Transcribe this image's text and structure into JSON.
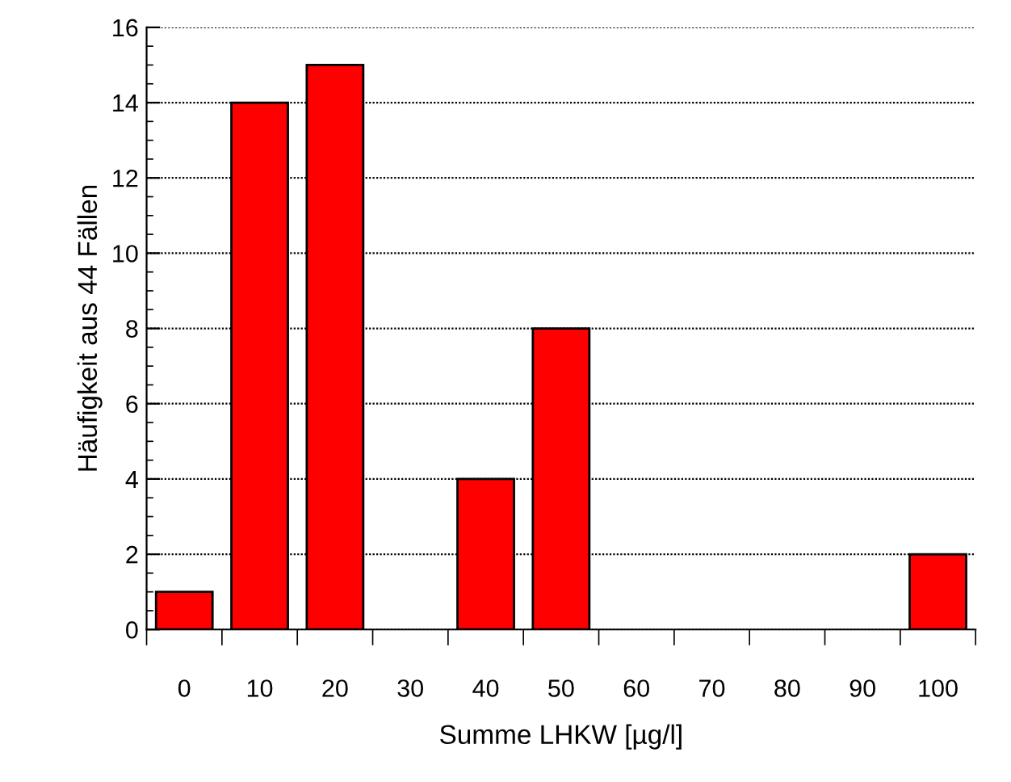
{
  "chart_data": {
    "type": "bar",
    "xlabel": "Summe LHKW [µg/l]",
    "ylabel": "Häufigkeit aus 44 Fällen",
    "categories": [
      "0",
      "10",
      "20",
      "30",
      "40",
      "50",
      "60",
      "70",
      "80",
      "90",
      "100"
    ],
    "values": [
      1,
      14,
      15,
      0,
      4,
      8,
      0,
      0,
      0,
      0,
      2
    ],
    "color": "#ff0000",
    "ylim": [
      0,
      16
    ],
    "yticks": [
      0,
      2,
      4,
      6,
      8,
      10,
      12,
      14,
      16
    ],
    "grid": "y"
  }
}
